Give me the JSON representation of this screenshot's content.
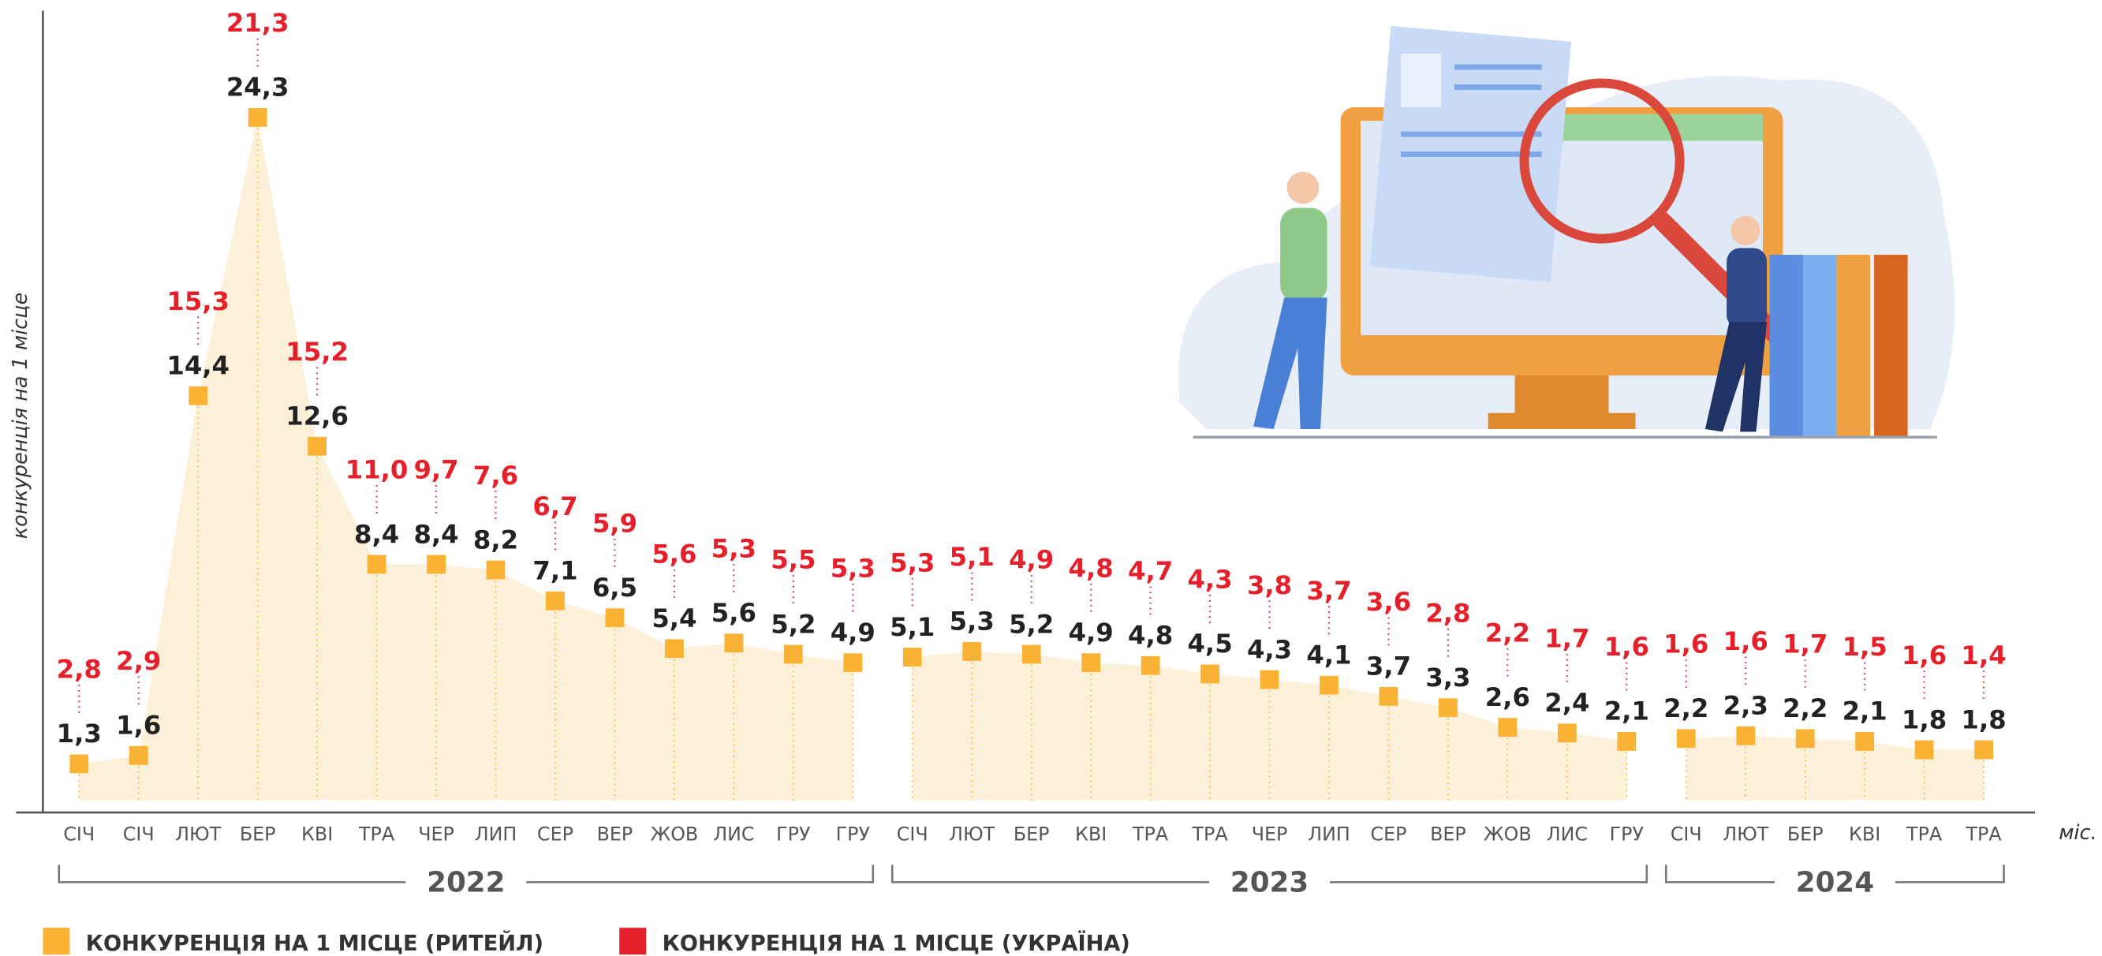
{
  "chart_data": {
    "type": "line",
    "y_label": "конкуренція на 1 місце",
    "x_label": "міс.",
    "groups": [
      {
        "label": "2022",
        "categories": [
          "СІЧ",
          "СІЧ",
          "ЛЮТ",
          "БЕР",
          "КВІ",
          "ТРА",
          "ЧЕР",
          "ЛИП",
          "СЕР",
          "ВЕР",
          "ЖОВ",
          "ЛИС",
          "ГРУ",
          "ГРУ"
        ]
      },
      {
        "label": "2023",
        "categories": [
          "СІЧ",
          "ЛЮТ",
          "БЕР",
          "КВІ",
          "ТРА",
          "ТРА",
          "ЧЕР",
          "ЛИП",
          "СЕР",
          "ВЕР",
          "ЖОВ",
          "ЛИС",
          "ГРУ"
        ]
      },
      {
        "label": "2024",
        "categories": [
          "СІЧ",
          "ЛЮТ",
          "БЕР",
          "КВІ",
          "ТРА",
          "ТРА"
        ]
      }
    ],
    "series": [
      {
        "name": "КОНКУРЕНЦІЯ НА 1 МІСЦЕ (РИТЕЙЛ)",
        "color": "#f9b233",
        "area_color": "#fdf0d8",
        "values": [
          1.3,
          1.6,
          14.4,
          24.3,
          12.6,
          8.4,
          8.4,
          8.2,
          7.1,
          6.5,
          5.4,
          5.6,
          5.2,
          4.9,
          5.1,
          5.3,
          5.2,
          4.9,
          4.8,
          4.5,
          4.3,
          4.1,
          3.7,
          3.3,
          2.6,
          2.4,
          2.1,
          2.2,
          2.3,
          2.2,
          2.1,
          1.8,
          1.8
        ],
        "value_labels": [
          "1,3",
          "1,6",
          "14,4",
          "24,3",
          "12,6",
          "8,4",
          "8,4",
          "8,2",
          "7,1",
          "6,5",
          "5,4",
          "5,6",
          "5,2",
          "4,9",
          "5,1",
          "5,3",
          "5,2",
          "4,9",
          "4,8",
          "4,5",
          "4,3",
          "4,1",
          "3,7",
          "3,3",
          "2,6",
          "2,4",
          "2,1",
          "2,2",
          "2,3",
          "2,2",
          "2,1",
          "1,8",
          "1,8"
        ]
      },
      {
        "name": "КОНКУРЕНЦІЯ НА 1 МІСЦЕ (УКРАЇНА)",
        "color": "#e5202a",
        "values": [
          2.8,
          2.9,
          15.3,
          21.3,
          15.2,
          11.0,
          9.7,
          7.6,
          6.7,
          5.9,
          5.6,
          5.3,
          5.5,
          5.3,
          5.3,
          5.1,
          4.9,
          4.8,
          4.7,
          4.3,
          3.8,
          3.7,
          3.6,
          2.8,
          2.2,
          1.7,
          1.6,
          1.6,
          1.6,
          1.7,
          1.5,
          1.6,
          1.4
        ],
        "value_labels": [
          "2,8",
          "2,9",
          "15,3",
          "21,3",
          "15,2",
          "11,0",
          "9,7",
          "7,6",
          "6,7",
          "5,9",
          "5,6",
          "5,3",
          "5,5",
          "5,3",
          "5,3",
          "5,1",
          "4,9",
          "4,8",
          "4,7",
          "4,3",
          "3,8",
          "3,7",
          "3,6",
          "2,8",
          "2,2",
          "1,7",
          "1,6",
          "1,6",
          "1,6",
          "1,7",
          "1,5",
          "1,6",
          "1,4"
        ]
      }
    ],
    "ylim": [
      0,
      28
    ]
  }
}
